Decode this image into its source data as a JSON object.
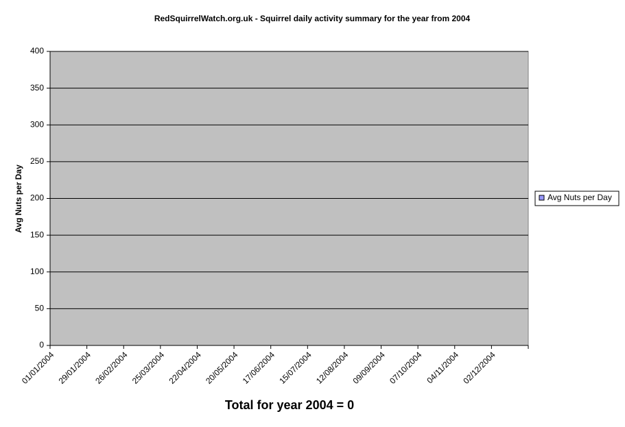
{
  "chart_data": {
    "type": "bar",
    "title": "RedSquirrelWatch.org.uk - Squirrel daily activity summary for the year from 2004",
    "y_label": "Avg Nuts per Day",
    "x_label": "Total for year 2004 = 0",
    "categories": [
      "01/01/2004",
      "29/01/2004",
      "26/02/2004",
      "25/03/2004",
      "22/04/2004",
      "20/05/2004",
      "17/06/2004",
      "15/07/2004",
      "12/08/2004",
      "09/09/2004",
      "07/10/2004",
      "04/11/2004",
      "02/12/2004"
    ],
    "series": [
      {
        "name": "Avg Nuts per Day",
        "color": "#9999ff",
        "values": [
          0,
          0,
          0,
          0,
          0,
          0,
          0,
          0,
          0,
          0,
          0,
          0,
          0
        ]
      }
    ],
    "ylim": [
      0,
      400
    ],
    "yticks": [
      0,
      50,
      100,
      150,
      200,
      250,
      300,
      350,
      400
    ],
    "grid": true,
    "legend": "right"
  }
}
